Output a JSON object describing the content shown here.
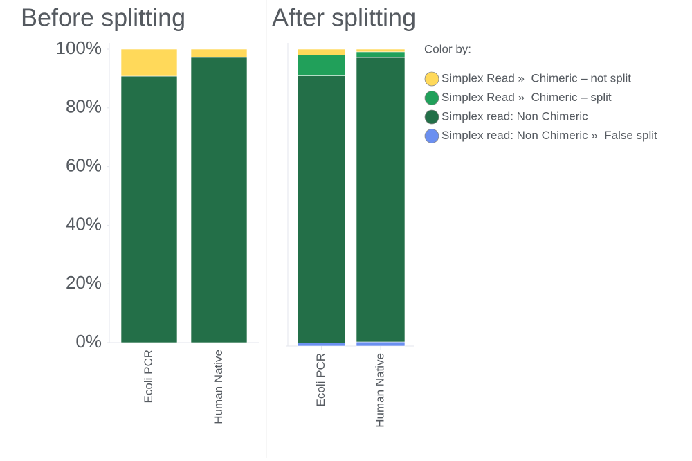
{
  "chart_data": [
    {
      "type": "stacked-bar",
      "title": "Before splitting",
      "categories": [
        "Ecoli PCR",
        "Human Native"
      ],
      "ylim": [
        0,
        100
      ],
      "yticks": [
        {
          "value": 0,
          "label": "0%"
        },
        {
          "value": 20,
          "label": "20%"
        },
        {
          "value": 40,
          "label": "40%"
        },
        {
          "value": 60,
          "label": "60%"
        },
        {
          "value": 80,
          "label": "80%"
        },
        {
          "value": 100,
          "label": "100%"
        }
      ],
      "series": [
        {
          "color": "#236f48",
          "values": [
            90.8,
            97.2
          ]
        },
        {
          "color": "#ffd95a",
          "values": [
            9.2,
            2.8
          ]
        }
      ]
    },
    {
      "type": "stacked-bar",
      "title": "After splitting",
      "categories": [
        "Ecoli PCR",
        "Human Native"
      ],
      "ylim": [
        0,
        100
      ],
      "legend_title": "Color by:",
      "series": [
        {
          "name": "Simplex read: Non Chimeric »  False split",
          "color": "#6b8ff0",
          "values": [
            1,
            1.4
          ]
        },
        {
          "name": "Simplex read: Non Chimeric",
          "color": "#236f48",
          "values": [
            90,
            95.8
          ]
        },
        {
          "name": "Simplex Read »  Chimeric – split",
          "color": "#21a05a",
          "values": [
            7,
            1.9
          ]
        },
        {
          "name": "Simplex Read »  Chimeric – not split",
          "color": "#ffd95a",
          "values": [
            2,
            0.9
          ]
        }
      ]
    }
  ]
}
